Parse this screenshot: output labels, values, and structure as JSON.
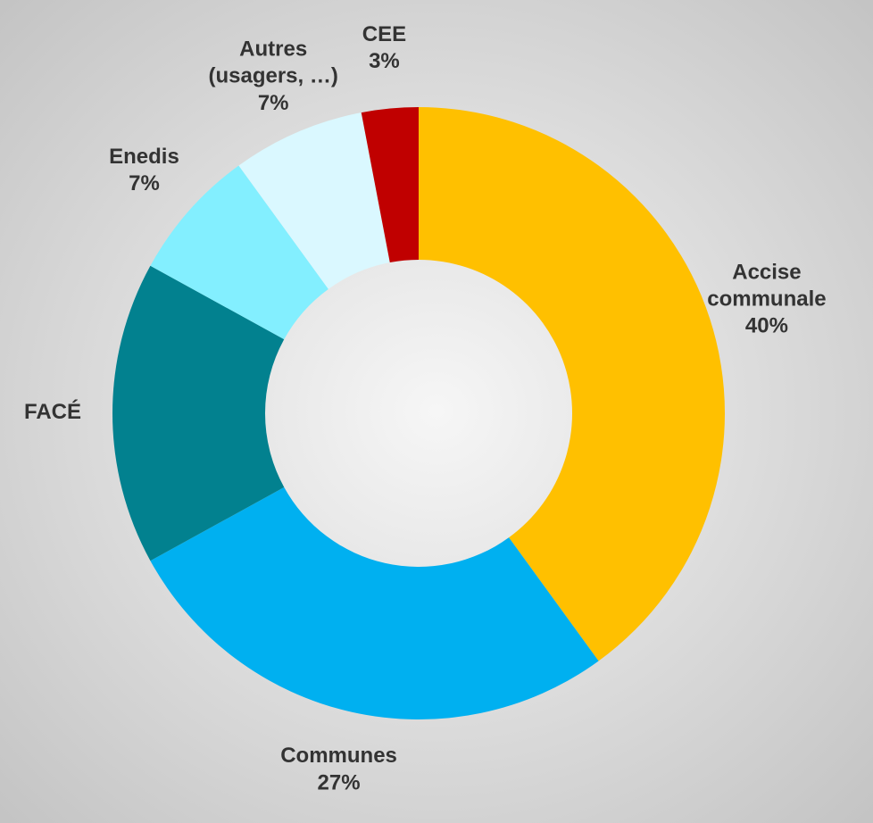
{
  "chart_data": {
    "type": "donut",
    "categories": [
      "Accise\ncommunale",
      "Communes",
      "FACÉ",
      "Enedis",
      "Autres\n(usagers, …)",
      "CEE"
    ],
    "values": [
      40,
      27,
      16,
      7,
      7,
      3
    ],
    "value_labels": [
      "40%",
      "27%",
      null,
      "7%",
      "7%",
      "3%"
    ],
    "colors": [
      "#FFC000",
      "#00B0F0",
      "#02818F",
      "#83EFFF",
      "#DAF8FF",
      "#C00000"
    ]
  }
}
